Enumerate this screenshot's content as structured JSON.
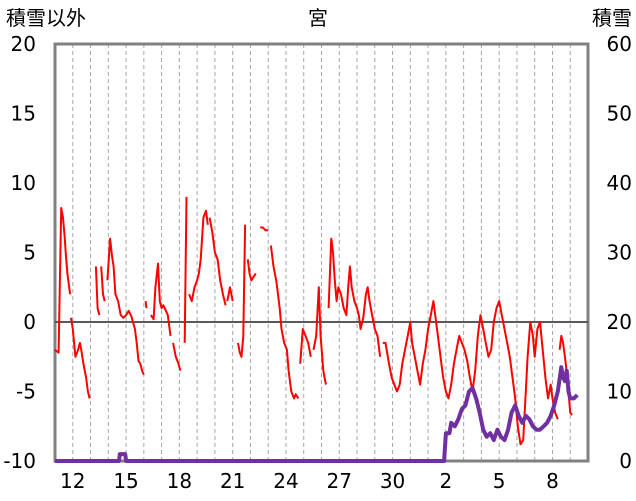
{
  "chart_data": {
    "type": "line",
    "title": "宮",
    "ylabel_left": "積雪以外",
    "ylabel_right": "積雪",
    "ylim_left": [
      -10,
      20
    ],
    "ylim_right": [
      0,
      60
    ],
    "yticks_left": [
      -10,
      -5,
      0,
      5,
      10,
      15,
      20
    ],
    "yticks_right": [
      0,
      10,
      20,
      30,
      40,
      50,
      60
    ],
    "x_range_days": [
      0,
      30
    ],
    "x_labels": [
      {
        "day": 1,
        "label": "12"
      },
      {
        "day": 4,
        "label": "15"
      },
      {
        "day": 7,
        "label": "18"
      },
      {
        "day": 10,
        "label": "21"
      },
      {
        "day": 13,
        "label": "24"
      },
      {
        "day": 16,
        "label": "27"
      },
      {
        "day": 19,
        "label": "30"
      },
      {
        "day": 22,
        "label": "2"
      },
      {
        "day": 25,
        "label": "5"
      },
      {
        "day": 28,
        "label": "8"
      }
    ],
    "grid": "vertical-dashed",
    "series": [
      {
        "axis": "left",
        "color": "#ff0000",
        "segments": [
          [
            [
              0.0,
              -2.0
            ],
            [
              0.2,
              -2.2
            ],
            [
              0.35,
              8.2
            ],
            [
              0.45,
              7.5
            ],
            [
              0.55,
              6.0
            ],
            [
              0.6,
              5.0
            ],
            [
              0.7,
              3.5
            ],
            [
              0.85,
              2.0
            ]
          ],
          [
            [
              0.9,
              0.3
            ],
            [
              1.0,
              -0.5
            ],
            [
              1.15,
              -2.5
            ],
            [
              1.3,
              -2.0
            ],
            [
              1.4,
              -1.5
            ],
            [
              1.5,
              -2.2
            ],
            [
              1.6,
              -3.0
            ],
            [
              1.75,
              -4.0
            ],
            [
              1.85,
              -5.0
            ],
            [
              1.95,
              -5.5
            ]
          ],
          [
            [
              2.3,
              4.0
            ],
            [
              2.4,
              1.0
            ],
            [
              2.5,
              0.5
            ]
          ],
          [
            [
              2.6,
              4.0
            ],
            [
              2.7,
              2.0
            ],
            [
              2.8,
              1.5
            ]
          ],
          [
            [
              2.95,
              3.0
            ],
            [
              3.1,
              6.0
            ],
            [
              3.2,
              4.8
            ],
            [
              3.3,
              4.0
            ],
            [
              3.4,
              2.0
            ],
            [
              3.55,
              1.5
            ],
            [
              3.7,
              0.5
            ],
            [
              3.85,
              0.3
            ],
            [
              4.0,
              0.5
            ],
            [
              4.15,
              0.8
            ],
            [
              4.3,
              0.4
            ],
            [
              4.5,
              -0.5
            ],
            [
              4.6,
              -1.5
            ],
            [
              4.7,
              -2.8
            ],
            [
              4.8,
              -3.0
            ],
            [
              4.9,
              -3.5
            ],
            [
              5.0,
              -3.8
            ]
          ],
          [
            [
              5.1,
              1.5
            ],
            [
              5.15,
              1.0
            ]
          ],
          [
            [
              5.4,
              0.5
            ],
            [
              5.55,
              0.2
            ],
            [
              5.65,
              2.5
            ],
            [
              5.8,
              4.2
            ],
            [
              5.9,
              1.5
            ],
            [
              6.0,
              1.0
            ],
            [
              6.1,
              1.2
            ],
            [
              6.25,
              0.8
            ],
            [
              6.35,
              0.5
            ],
            [
              6.45,
              -0.5
            ],
            [
              6.5,
              -1.0
            ]
          ],
          [
            [
              6.65,
              -1.5
            ],
            [
              6.8,
              -2.5
            ],
            [
              6.95,
              -3.0
            ],
            [
              7.05,
              -3.5
            ]
          ],
          [
            [
              7.3,
              -1.5
            ],
            [
              7.4,
              9.0
            ]
          ],
          [
            [
              7.55,
              2.0
            ],
            [
              7.7,
              1.5
            ],
            [
              7.85,
              2.5
            ],
            [
              8.0,
              3.0
            ],
            [
              8.1,
              3.5
            ],
            [
              8.2,
              4.5
            ],
            [
              8.35,
              7.5
            ],
            [
              8.5,
              8.0
            ],
            [
              8.6,
              7.0
            ]
          ],
          [
            [
              8.7,
              7.5
            ],
            [
              8.85,
              6.5
            ],
            [
              9.0,
              5.0
            ],
            [
              9.15,
              4.5
            ],
            [
              9.3,
              3.0
            ],
            [
              9.45,
              2.0
            ],
            [
              9.6,
              1.2
            ]
          ],
          [
            [
              9.7,
              1.5
            ],
            [
              9.85,
              2.5
            ],
            [
              10.0,
              1.5
            ]
          ],
          [
            [
              10.3,
              -1.5
            ],
            [
              10.4,
              -2.2
            ],
            [
              10.5,
              -2.5
            ],
            [
              10.6,
              -1.0
            ],
            [
              10.7,
              7.0
            ]
          ],
          [
            [
              10.85,
              4.5
            ],
            [
              10.95,
              3.5
            ],
            [
              11.05,
              3.0
            ],
            [
              11.15,
              3.2
            ],
            [
              11.3,
              3.5
            ]
          ],
          [
            [
              11.55,
              6.8
            ],
            [
              11.7,
              6.8
            ],
            [
              11.85,
              6.6
            ],
            [
              12.0,
              6.6
            ]
          ],
          [
            [
              12.15,
              5.5
            ],
            [
              12.3,
              4.0
            ],
            [
              12.45,
              3.0
            ],
            [
              12.55,
              2.0
            ],
            [
              12.65,
              1.0
            ],
            [
              12.75,
              -0.5
            ],
            [
              12.9,
              -1.5
            ],
            [
              13.05,
              -2.0
            ],
            [
              13.15,
              -3.5
            ],
            [
              13.3,
              -5.0
            ],
            [
              13.45,
              -5.5
            ],
            [
              13.55,
              -5.2
            ],
            [
              13.7,
              -5.5
            ]
          ],
          [
            [
              13.8,
              -3.0
            ],
            [
              13.95,
              -0.5
            ],
            [
              14.1,
              -1.0
            ],
            [
              14.25,
              -1.5
            ],
            [
              14.4,
              -2.5
            ]
          ],
          [
            [
              14.55,
              -2.0
            ],
            [
              14.7,
              -1.0
            ],
            [
              14.85,
              2.5
            ],
            [
              14.95,
              -1.0
            ],
            [
              15.1,
              -3.5
            ],
            [
              15.25,
              -4.5
            ]
          ],
          [
            [
              15.4,
              1.0
            ],
            [
              15.55,
              6.0
            ],
            [
              15.65,
              5.0
            ],
            [
              15.75,
              3.0
            ],
            [
              15.85,
              1.5
            ],
            [
              15.95,
              2.5
            ],
            [
              16.1,
              2.0
            ],
            [
              16.25,
              1.0
            ],
            [
              16.4,
              0.5
            ],
            [
              16.5,
              2.5
            ],
            [
              16.6,
              4.0
            ],
            [
              16.7,
              2.5
            ],
            [
              16.85,
              1.5
            ],
            [
              17.0,
              1.0
            ],
            [
              17.1,
              0.5
            ],
            [
              17.2,
              -0.5
            ],
            [
              17.35,
              0.3
            ],
            [
              17.5,
              2.0
            ],
            [
              17.6,
              2.5
            ],
            [
              17.7,
              1.5
            ],
            [
              17.85,
              0.5
            ],
            [
              18.0,
              -0.5
            ],
            [
              18.15,
              -1.0
            ],
            [
              18.3,
              -2.5
            ]
          ],
          [
            [
              18.45,
              -1.5
            ],
            [
              18.6,
              -1.5
            ],
            [
              18.8,
              -3.0
            ],
            [
              18.95,
              -4.0
            ],
            [
              19.1,
              -4.5
            ],
            [
              19.25,
              -5.0
            ],
            [
              19.4,
              -4.5
            ],
            [
              19.55,
              -3.0
            ],
            [
              19.7,
              -2.0
            ],
            [
              19.85,
              -1.0
            ],
            [
              20.0,
              0.0
            ],
            [
              20.1,
              -1.5
            ],
            [
              20.25,
              -2.5
            ],
            [
              20.4,
              -3.5
            ],
            [
              20.55,
              -4.5
            ],
            [
              20.7,
              -3.0
            ],
            [
              20.85,
              -2.0
            ],
            [
              21.0,
              -0.5
            ],
            [
              21.15,
              0.5
            ],
            [
              21.3,
              1.5
            ],
            [
              21.4,
              0.5
            ],
            [
              21.55,
              -1.0
            ],
            [
              21.7,
              -2.5
            ],
            [
              21.85,
              -4.0
            ],
            [
              22.0,
              -5.0
            ],
            [
              22.15,
              -5.5
            ],
            [
              22.3,
              -4.5
            ],
            [
              22.45,
              -3.0
            ],
            [
              22.6,
              -2.0
            ],
            [
              22.75,
              -1.0
            ],
            [
              22.9,
              -1.5
            ],
            [
              23.05,
              -2.0
            ],
            [
              23.2,
              -2.8
            ],
            [
              23.35,
              -4.0
            ],
            [
              23.5,
              -5.0
            ],
            [
              23.65,
              -3.5
            ],
            [
              23.8,
              -1.0
            ],
            [
              23.95,
              0.5
            ],
            [
              24.1,
              -0.5
            ],
            [
              24.25,
              -1.5
            ],
            [
              24.4,
              -2.5
            ],
            [
              24.55,
              -2.0
            ],
            [
              24.7,
              0.0
            ],
            [
              24.85,
              1.0
            ],
            [
              25.0,
              1.5
            ],
            [
              25.15,
              0.5
            ],
            [
              25.3,
              -0.5
            ],
            [
              25.45,
              -1.5
            ],
            [
              25.6,
              -2.5
            ],
            [
              25.75,
              -4.0
            ],
            [
              25.9,
              -5.5
            ],
            [
              26.05,
              -7.5
            ],
            [
              26.2,
              -8.8
            ],
            [
              26.35,
              -8.5
            ],
            [
              26.5,
              -5.0
            ],
            [
              26.6,
              -2.5
            ],
            [
              26.75,
              0.0
            ],
            [
              26.9,
              -1.0
            ],
            [
              27.0,
              -2.5
            ],
            [
              27.15,
              -0.5
            ],
            [
              27.3,
              0.0
            ],
            [
              27.45,
              -2.0
            ],
            [
              27.6,
              -4.0
            ],
            [
              27.75,
              -5.5
            ],
            [
              27.9,
              -4.5
            ],
            [
              28.0,
              -5.5
            ],
            [
              28.15,
              -6.5
            ],
            [
              28.3,
              -7.0
            ]
          ],
          [
            [
              28.4,
              -2.0
            ],
            [
              28.5,
              -1.0
            ],
            [
              28.6,
              -1.5
            ],
            [
              28.75,
              -3.0
            ],
            [
              28.9,
              -5.0
            ],
            [
              29.0,
              -6.5
            ],
            [
              29.1,
              -6.7
            ]
          ]
        ]
      },
      {
        "axis": "right",
        "color": "#7030a0",
        "segments": [
          [
            [
              0.0,
              0.0
            ],
            [
              2.9,
              0.0
            ],
            [
              3.0,
              0.0
            ],
            [
              3.6,
              0.0
            ],
            [
              3.65,
              1.0
            ],
            [
              3.95,
              1.0
            ],
            [
              4.0,
              0.0
            ],
            [
              19.6,
              0.0
            ],
            [
              21.9,
              0.0
            ],
            [
              22.0,
              4.0
            ],
            [
              22.2,
              4.0
            ],
            [
              22.3,
              5.5
            ],
            [
              22.5,
              5.0
            ],
            [
              22.7,
              6.0
            ],
            [
              22.9,
              7.5
            ],
            [
              23.1,
              8.0
            ],
            [
              23.3,
              10.0
            ],
            [
              23.5,
              10.5
            ],
            [
              23.7,
              9.0
            ],
            [
              23.9,
              7.0
            ],
            [
              24.1,
              4.5
            ],
            [
              24.3,
              3.5
            ],
            [
              24.5,
              4.0
            ],
            [
              24.7,
              3.0
            ],
            [
              24.9,
              4.5
            ],
            [
              25.1,
              3.5
            ],
            [
              25.3,
              3.0
            ],
            [
              25.5,
              4.5
            ],
            [
              25.7,
              7.0
            ],
            [
              25.9,
              8.0
            ],
            [
              26.1,
              6.5
            ],
            [
              26.3,
              5.5
            ],
            [
              26.5,
              6.5
            ],
            [
              26.7,
              6.0
            ],
            [
              26.9,
              5.0
            ],
            [
              27.1,
              4.5
            ],
            [
              27.3,
              4.5
            ],
            [
              27.5,
              5.0
            ],
            [
              27.7,
              5.5
            ],
            [
              27.9,
              6.5
            ],
            [
              28.1,
              8.0
            ],
            [
              28.3,
              10.0
            ],
            [
              28.5,
              13.5
            ],
            [
              28.6,
              12.0
            ],
            [
              28.7,
              11.5
            ],
            [
              28.8,
              13.0
            ],
            [
              28.9,
              10.0
            ],
            [
              29.0,
              9.0
            ],
            [
              29.2,
              9.0
            ],
            [
              29.4,
              9.5
            ]
          ]
        ]
      }
    ]
  }
}
